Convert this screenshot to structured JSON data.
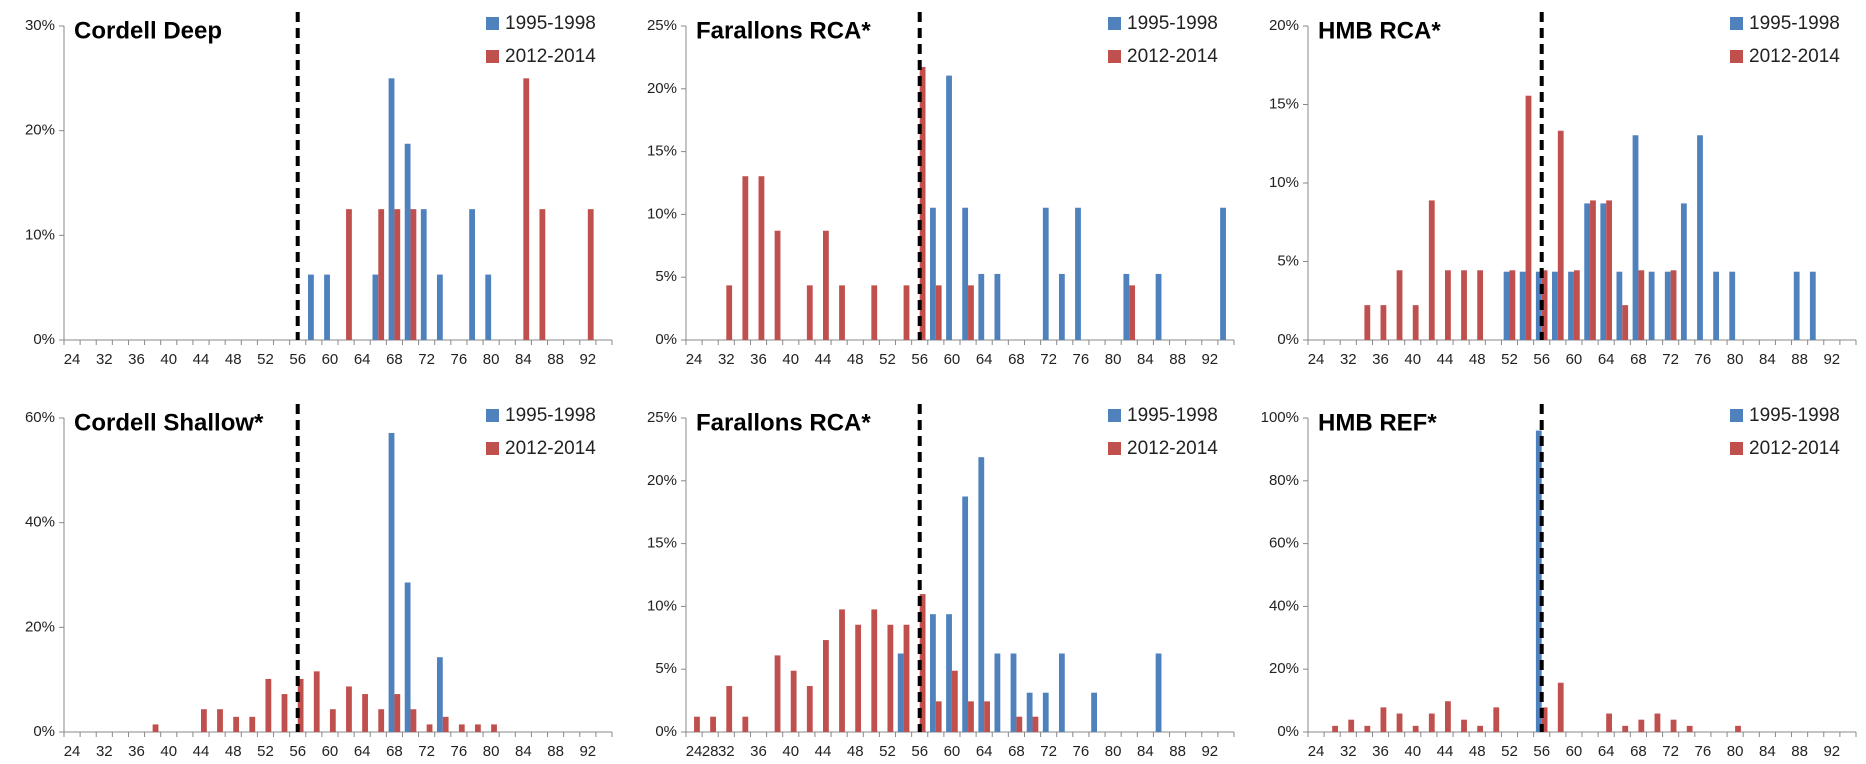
{
  "chart_data": [
    {
      "type": "bar",
      "title": "Cordell Deep",
      "categories": [
        24,
        null,
        32,
        null,
        36,
        null,
        40,
        null,
        44,
        null,
        48,
        null,
        52,
        null,
        56,
        null,
        60,
        null,
        64,
        null,
        68,
        null,
        72,
        null,
        76,
        null,
        80,
        null,
        84,
        null,
        88,
        null,
        92,
        null
      ],
      "series": [
        {
          "name": "1995-1998",
          "color": "#4f81bd",
          "values": [
            0,
            0,
            0,
            0,
            0,
            0,
            0,
            0,
            0,
            0,
            0,
            0,
            0,
            0,
            0,
            6.25,
            6.25,
            0,
            0,
            6.25,
            25,
            18.75,
            12.5,
            6.25,
            0,
            12.5,
            6.25,
            0,
            0,
            0,
            0,
            0,
            0,
            0
          ]
        },
        {
          "name": "2012-2014",
          "color": "#c0504d",
          "values": [
            0,
            0,
            0,
            0,
            0,
            0,
            0,
            0,
            0,
            0,
            0,
            0,
            0,
            0,
            0,
            0,
            0,
            12.5,
            0,
            12.5,
            12.5,
            12.5,
            0,
            0,
            0,
            0,
            0,
            0,
            25,
            12.5,
            0,
            0,
            12.5,
            0
          ]
        }
      ],
      "ylim": [
        0,
        30
      ],
      "yticks": [
        {
          "value": 0,
          "label": "0%"
        },
        {
          "value": 10,
          "label": "10%"
        },
        {
          "value": 20,
          "label": "20%"
        },
        {
          "value": 30,
          "label": "30%"
        }
      ],
      "reference_x": 56
    },
    {
      "type": "bar",
      "title": "Farallons RCA*",
      "categories": [
        24,
        null,
        32,
        null,
        36,
        null,
        40,
        null,
        44,
        null,
        48,
        null,
        52,
        null,
        56,
        null,
        60,
        null,
        64,
        null,
        68,
        null,
        72,
        null,
        76,
        null,
        80,
        null,
        84,
        null,
        88,
        null,
        92,
        null
      ],
      "series": [
        {
          "name": "1995-1998",
          "color": "#4f81bd",
          "values": [
            0,
            0,
            0,
            0,
            0,
            0,
            0,
            0,
            0,
            0,
            0,
            0,
            0,
            0,
            0,
            10.53,
            21.05,
            10.53,
            5.26,
            5.26,
            0,
            0,
            10.53,
            5.26,
            10.53,
            0,
            0,
            5.26,
            0,
            5.26,
            0,
            0,
            0,
            10.53
          ]
        },
        {
          "name": "2012-2014",
          "color": "#c0504d",
          "values": [
            0,
            0,
            4.35,
            13.04,
            13.04,
            8.7,
            0,
            4.35,
            8.7,
            4.35,
            0,
            4.35,
            0,
            4.35,
            21.74,
            4.35,
            0,
            4.35,
            0,
            0,
            0,
            0,
            0,
            0,
            0,
            0,
            0,
            4.35,
            0,
            0,
            0,
            0,
            0,
            0
          ]
        }
      ],
      "ylim": [
        0,
        25
      ],
      "yticks": [
        {
          "value": 0,
          "label": "0%"
        },
        {
          "value": 5,
          "label": "5%"
        },
        {
          "value": 10,
          "label": "10%"
        },
        {
          "value": 15,
          "label": "15%"
        },
        {
          "value": 20,
          "label": "20%"
        },
        {
          "value": 25,
          "label": "25%"
        }
      ],
      "reference_x": 56
    },
    {
      "type": "bar",
      "title": "HMB RCA*",
      "categories": [
        24,
        null,
        32,
        null,
        36,
        null,
        40,
        null,
        44,
        null,
        48,
        null,
        52,
        null,
        56,
        null,
        60,
        null,
        64,
        null,
        68,
        null,
        72,
        null,
        76,
        null,
        80,
        null,
        84,
        null,
        88,
        null,
        92,
        null
      ],
      "series": [
        {
          "name": "1995-1998",
          "color": "#4f81bd",
          "values": [
            0,
            0,
            0,
            0,
            0,
            0,
            0,
            0,
            0,
            0,
            0,
            0,
            4.35,
            4.35,
            4.35,
            4.35,
            4.35,
            8.7,
            8.7,
            4.35,
            13.04,
            4.35,
            4.35,
            8.7,
            13.04,
            4.35,
            4.35,
            0,
            0,
            0,
            4.35,
            4.35,
            0,
            0
          ]
        },
        {
          "name": "2012-2014",
          "color": "#c0504d",
          "values": [
            0,
            0,
            0,
            2.22,
            2.22,
            4.44,
            2.22,
            8.89,
            4.44,
            4.44,
            4.44,
            0,
            4.44,
            15.56,
            4.44,
            13.33,
            4.44,
            8.89,
            8.89,
            2.22,
            4.44,
            0,
            4.44,
            0,
            0,
            0,
            0,
            0,
            0,
            0,
            0,
            0,
            0,
            0
          ]
        }
      ],
      "ylim": [
        0,
        20
      ],
      "yticks": [
        {
          "value": 0,
          "label": "0%"
        },
        {
          "value": 5,
          "label": "5%"
        },
        {
          "value": 10,
          "label": "10%"
        },
        {
          "value": 15,
          "label": "15%"
        },
        {
          "value": 20,
          "label": "20%"
        }
      ],
      "reference_x": 56
    },
    {
      "type": "bar",
      "title": "Cordell Shallow*",
      "categories": [
        24,
        null,
        32,
        null,
        36,
        null,
        40,
        null,
        44,
        null,
        48,
        null,
        52,
        null,
        56,
        null,
        60,
        null,
        64,
        null,
        68,
        null,
        72,
        null,
        76,
        null,
        80,
        null,
        84,
        null,
        88,
        null,
        92,
        null
      ],
      "series": [
        {
          "name": "1995-1998",
          "color": "#4f81bd",
          "values": [
            0,
            0,
            0,
            0,
            0,
            0,
            0,
            0,
            0,
            0,
            0,
            0,
            0,
            0,
            0,
            0,
            0,
            0,
            0,
            0,
            57.14,
            28.57,
            0,
            14.29,
            0,
            0,
            0,
            0,
            0,
            0,
            0,
            0,
            0,
            0
          ]
        },
        {
          "name": "2012-2014",
          "color": "#c0504d",
          "values": [
            0,
            0,
            0,
            0,
            0,
            1.45,
            0,
            0,
            4.35,
            4.35,
            2.9,
            2.9,
            10.14,
            7.25,
            10.14,
            11.59,
            4.35,
            8.7,
            7.25,
            4.35,
            7.25,
            4.35,
            1.45,
            2.9,
            1.45,
            1.45,
            1.45,
            0,
            0,
            0,
            0,
            0,
            0,
            0
          ]
        }
      ],
      "ylim": [
        0,
        60
      ],
      "yticks": [
        {
          "value": 0,
          "label": "0%"
        },
        {
          "value": 20,
          "label": "20%"
        },
        {
          "value": 40,
          "label": "40%"
        },
        {
          "value": 60,
          "label": "60%"
        }
      ],
      "reference_x": 56
    },
    {
      "type": "bar",
      "title": "Farallons RCA*",
      "categories": [
        24,
        28,
        32,
        null,
        36,
        null,
        40,
        null,
        44,
        null,
        48,
        null,
        52,
        null,
        56,
        null,
        60,
        null,
        64,
        null,
        68,
        null,
        72,
        null,
        76,
        null,
        80,
        null,
        84,
        null,
        88,
        null,
        92,
        null
      ],
      "series": [
        {
          "name": "1995-1998",
          "color": "#4f81bd",
          "values": [
            0,
            0,
            0,
            0,
            0,
            0,
            0,
            0,
            0,
            0,
            0,
            0,
            0,
            6.25,
            0,
            9.38,
            9.38,
            18.75,
            21.88,
            6.25,
            6.25,
            3.13,
            3.13,
            6.25,
            0,
            3.13,
            0,
            0,
            0,
            6.25,
            0,
            0,
            0,
            0
          ]
        },
        {
          "name": "2012-2014",
          "color": "#c0504d",
          "values": [
            1.22,
            1.22,
            3.66,
            1.22,
            0,
            6.1,
            4.88,
            3.66,
            7.32,
            9.76,
            8.54,
            9.76,
            8.54,
            8.54,
            10.98,
            2.44,
            4.88,
            2.44,
            2.44,
            0,
            1.22,
            1.22,
            0,
            0,
            0,
            0,
            0,
            0,
            0,
            0,
            0,
            0,
            0,
            0
          ]
        }
      ],
      "ylim": [
        0,
        25
      ],
      "yticks": [
        {
          "value": 0,
          "label": "0%"
        },
        {
          "value": 5,
          "label": "5%"
        },
        {
          "value": 10,
          "label": "10%"
        },
        {
          "value": 15,
          "label": "15%"
        },
        {
          "value": 20,
          "label": "20%"
        },
        {
          "value": 25,
          "label": "25%"
        }
      ],
      "reference_x": 56
    },
    {
      "type": "bar",
      "title": "HMB REF*",
      "categories": [
        24,
        null,
        32,
        null,
        36,
        null,
        40,
        null,
        44,
        null,
        48,
        null,
        52,
        null,
        56,
        null,
        60,
        null,
        64,
        null,
        68,
        null,
        72,
        null,
        76,
        null,
        80,
        null,
        84,
        null,
        88,
        null,
        92,
        null
      ],
      "series": [
        {
          "name": "1995-1998",
          "color": "#4f81bd",
          "values": [
            0,
            0,
            0,
            0,
            0,
            0,
            0,
            0,
            0,
            0,
            0,
            0,
            0,
            0,
            96,
            0,
            0,
            0,
            0,
            0,
            0,
            0,
            0,
            0,
            0,
            0,
            0,
            0,
            0,
            0,
            0,
            0,
            0,
            0
          ]
        },
        {
          "name": "2012-2014",
          "color": "#c0504d",
          "values": [
            0,
            1.96,
            3.92,
            1.96,
            7.84,
            5.88,
            1.96,
            5.88,
            9.8,
            3.92,
            1.96,
            7.84,
            0,
            0,
            7.84,
            15.69,
            0,
            0,
            5.88,
            1.96,
            3.92,
            5.88,
            3.92,
            1.96,
            0,
            0,
            1.96,
            0,
            0,
            0,
            0,
            0,
            0,
            0
          ]
        }
      ],
      "ylim": [
        0,
        100
      ],
      "yticks": [
        {
          "value": 0,
          "label": "0%"
        },
        {
          "value": 20,
          "label": "20%"
        },
        {
          "value": 40,
          "label": "40%"
        },
        {
          "value": 60,
          "label": "60%"
        },
        {
          "value": 80,
          "label": "80%"
        },
        {
          "value": 100,
          "label": "100%"
        }
      ],
      "reference_x": 56
    }
  ]
}
